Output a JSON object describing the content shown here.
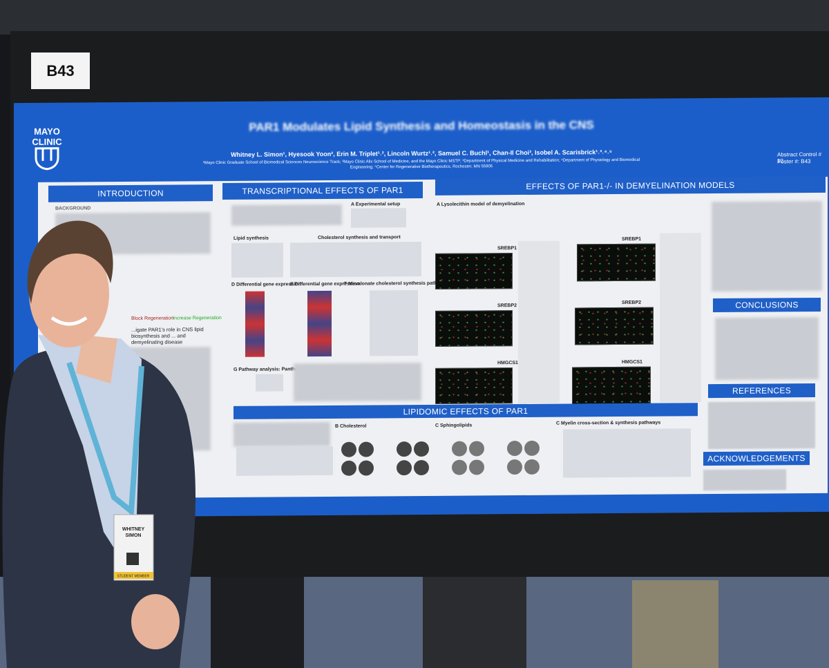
{
  "booth": {
    "number": "B43"
  },
  "poster": {
    "logo": [
      "MAYO",
      "CLINIC"
    ],
    "title": "PAR1 Modulates Lipid Synthesis and Homeostasis in the CNS",
    "authors": "Whitney L. Simon¹, Hyesook Yoon², Erin M. Triplet¹˒², Lincoln Wurtz¹˒², Samuel C. Buchl¹, Chan-Il Choi³, Isobel A. Scarisbrick¹˒³˒⁴˒⁵",
    "affiliations": "¹Mayo Clinic Graduate School of Biomedical Sciences Neuroscience Track; ²Mayo Clinic Alix School of Medicine, and the Mayo Clinic MSTP; ³Department of Physical Medicine and Rehabilitation; ⁴Department of Physiology and Biomedical Engineering; ⁵Center for Regenerative Biotherapeutics, Rochester, MN 55905",
    "abstract_control": "Abstract Control # 12",
    "poster_number": "Poster #: B43",
    "introduction": {
      "header": "INTRODUCTION",
      "subheader": "BACKGROUND",
      "figure_labels": [
        "Block Regeneration",
        "Increase Regeneration"
      ],
      "aim": "...igate PAR1's role in CNS lipid biosynthesis and ... and demyelinating disease"
    },
    "transcriptional": {
      "header": "TRANSCRIPTIONAL EFFECTS OF PAR1",
      "panels": [
        "A  Experimental setup",
        "Lipid synthesis",
        "Cholesterol synthesis and transport",
        "D  Differential gene expression",
        "E  Differential gene expression",
        "F  Mevalonate cholesterol synthesis pathway",
        "G  Pathway analysis: Panther GO"
      ]
    },
    "demyelination": {
      "header": "EFFECTS OF PAR1-/- IN DEMYELINATION MODELS",
      "panels": [
        "A  Lysolecithin model of demyelination",
        "SREBP1",
        "SREBP2",
        "HMGCS1",
        "SREBP1",
        "SREBP2",
        "HMGCS1"
      ]
    },
    "lipidomic": {
      "header": "LIPIDOMIC EFFECTS OF PAR1",
      "panels": [
        "B  Cholesterol",
        "C  Sphingolipids",
        "C  Myelin cross-section & synthesis pathways"
      ]
    },
    "conclusions": {
      "header": "CONCLUSIONS"
    },
    "references": {
      "header": "REFERENCES"
    },
    "acknowledgements": {
      "header": "ACKNOWLEDGEMENTS"
    }
  },
  "badge": {
    "name": [
      "WHITNEY",
      "SIMON"
    ],
    "role": "STUDENT MEMBER"
  }
}
